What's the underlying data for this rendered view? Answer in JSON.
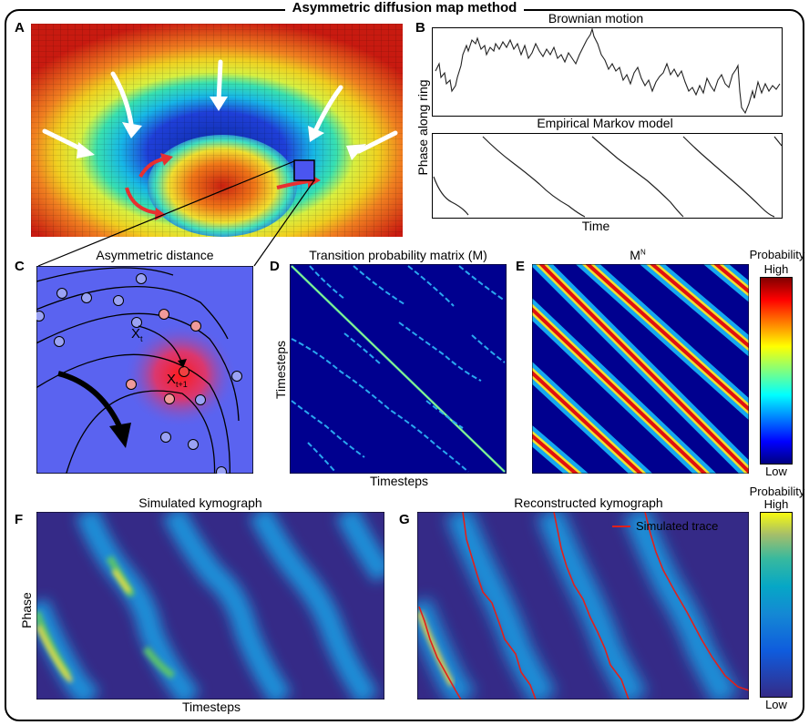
{
  "title": "Asymmetric diffusion map method",
  "panels": {
    "A": {
      "label": "A"
    },
    "B": {
      "label": "B",
      "top_title": "Brownian motion",
      "bottom_title": "Empirical Markov model",
      "ylabel": "Phase along ring",
      "xlabel": "Time"
    },
    "C": {
      "label": "C",
      "title": "Asymmetric distance",
      "xt": "X",
      "xt_sub": "t",
      "xt1": "X",
      "xt1_sub": "t+1"
    },
    "D": {
      "label": "D",
      "title": "Transition probability matrix (M)",
      "ylabel": "Timesteps",
      "xlabel": "Timesteps"
    },
    "E": {
      "label": "E",
      "title": "M",
      "title_sup": "N"
    },
    "F": {
      "label": "F",
      "title": "Simulated kymograph",
      "ylabel": "Phase",
      "xlabel": "Timesteps"
    },
    "G": {
      "label": "G",
      "title": "Reconstructed kymograph",
      "legend": "Simulated trace"
    }
  },
  "colorbars": {
    "top": {
      "title": "Probability",
      "high": "High",
      "low": "Low"
    },
    "bottom": {
      "title": "Probability",
      "high": "High",
      "low": "Low"
    }
  },
  "colors": {
    "jet_dark": "#00007f",
    "kymo_bg": "#352a87",
    "trace": "#e0201b",
    "ring_bg": "#5a63f0"
  }
}
